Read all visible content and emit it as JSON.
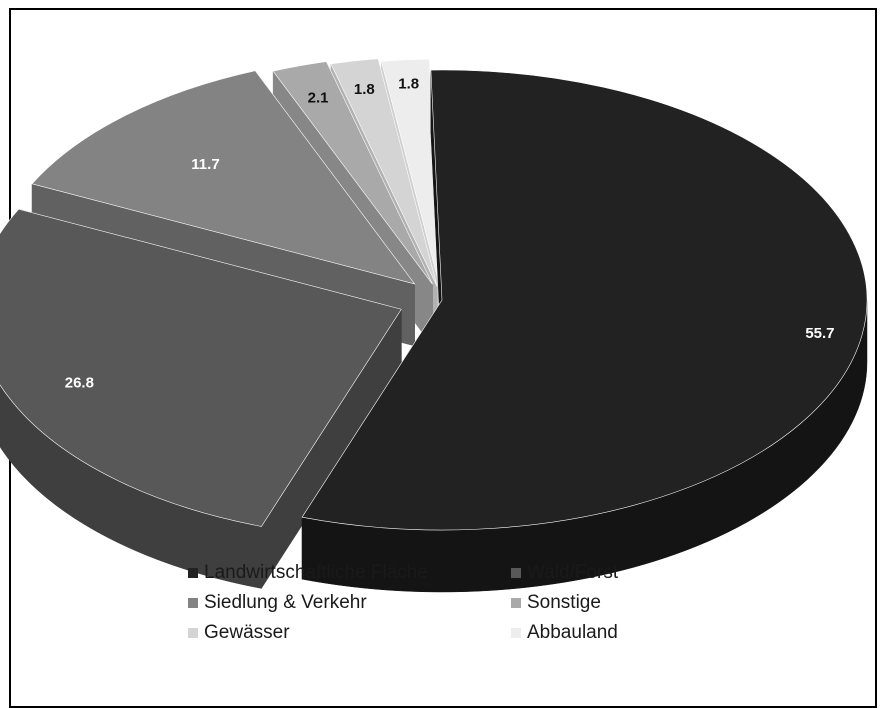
{
  "chart_data": {
    "type": "pie",
    "title": "",
    "slices": [
      {
        "label": "Landwirtschaftliche Fläche",
        "value": 55.7,
        "value_label": "55.7",
        "color": "#222222",
        "side_color": "#141414"
      },
      {
        "label": "Wald/Forst",
        "value": 26.8,
        "value_label": "26.8",
        "color": "#585858",
        "side_color": "#3f3f3f"
      },
      {
        "label": "Siedlung & Verkehr",
        "value": 11.7,
        "value_label": "11.7",
        "color": "#838383",
        "side_color": "#616161"
      },
      {
        "label": "Sonstige",
        "value": 2.1,
        "value_label": "2.1",
        "color": "#a9a9a9",
        "side_color": "#878787"
      },
      {
        "label": "Gewässer",
        "value": 1.8,
        "value_label": "1.8",
        "color": "#d4d4d4",
        "side_color": "#b2b2b2"
      },
      {
        "label": "Abbauland",
        "value": 1.8,
        "value_label": "1.8",
        "color": "#ededed",
        "side_color": "#cfcfcf"
      }
    ],
    "legend_position": "bottom",
    "legend_order": [
      "Landwirtschaftliche Fläche",
      "Wald/Forst",
      "Siedlung & Verkehr",
      "Sonstige",
      "Gewässer",
      "Abbauland"
    ]
  }
}
